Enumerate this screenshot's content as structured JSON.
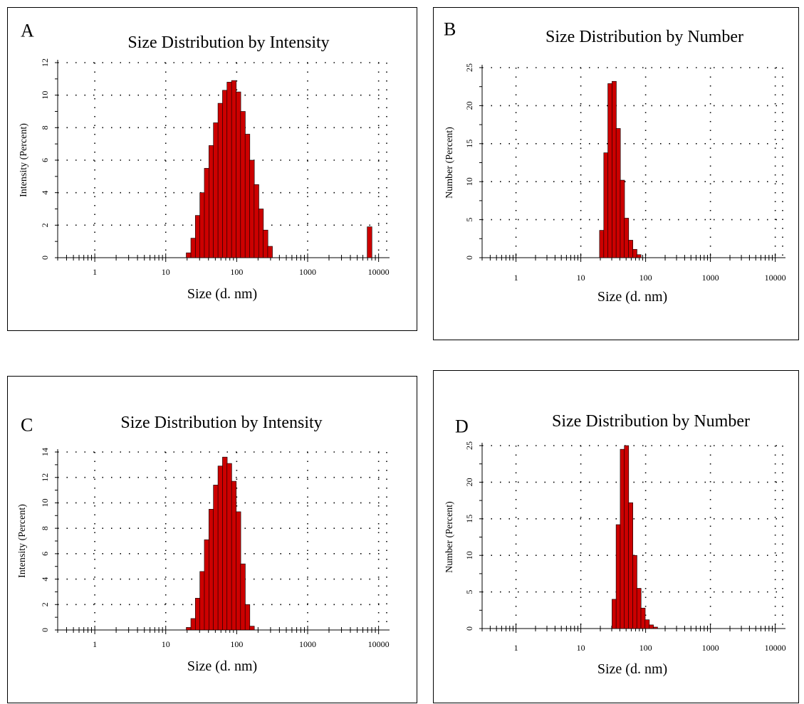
{
  "chart_data": [
    {
      "panel": "A",
      "type": "bar",
      "title": "Size Distribution by Intensity",
      "xlabel": "Size (d. nm)",
      "ylabel": "Intensity (Percent)",
      "xscale": "log",
      "xlim": [
        0.3,
        13000
      ],
      "ylim": [
        0,
        12
      ],
      "xticks": [
        1,
        10,
        100,
        1000,
        10000
      ],
      "xtick_labels": [
        "1",
        "10",
        "100",
        "1000",
        "10000"
      ],
      "yticks": [
        0,
        2,
        4,
        6,
        8,
        10,
        12
      ],
      "ytick_labels": [
        "0",
        "2",
        "4",
        "6",
        "8",
        "10",
        "12"
      ],
      "grid": true,
      "bar_color": "#cc0000",
      "x": [
        21.0,
        24.4,
        28.2,
        32.7,
        37.8,
        43.8,
        50.7,
        58.8,
        68.1,
        78.8,
        91.3,
        105.7,
        122.4,
        141.8,
        164.2,
        190.1,
        220.2,
        255.0,
        295.3,
        7456.0
      ],
      "values": [
        0.3,
        1.2,
        2.6,
        4.0,
        5.5,
        6.9,
        8.3,
        9.5,
        10.3,
        10.8,
        10.9,
        10.2,
        9.0,
        7.6,
        6.0,
        4.5,
        3.0,
        1.7,
        0.7,
        1.9
      ]
    },
    {
      "panel": "B",
      "type": "bar",
      "title": "Size Distribution by Number",
      "xlabel": "Size (d. nm)",
      "ylabel": "Number (Percent)",
      "xscale": "log",
      "xlim": [
        0.3,
        13000
      ],
      "ylim": [
        0,
        25
      ],
      "xticks": [
        1,
        10,
        100,
        1000,
        10000
      ],
      "xtick_labels": [
        "1",
        "10",
        "100",
        "1000",
        "10000"
      ],
      "yticks": [
        0,
        5,
        10,
        15,
        20,
        25
      ],
      "ytick_labels": [
        "0",
        "5",
        "10",
        "15",
        "20",
        "25"
      ],
      "grid": true,
      "bar_color": "#cc0000",
      "x": [
        21.0,
        24.4,
        28.2,
        32.7,
        37.8,
        43.8,
        50.7,
        58.8,
        68.1,
        78.8
      ],
      "values": [
        3.6,
        13.8,
        22.9,
        23.2,
        17.0,
        10.2,
        5.2,
        2.3,
        1.1,
        0.4
      ]
    },
    {
      "panel": "C",
      "type": "bar",
      "title": "Size Distribution by Intensity",
      "xlabel": "Size (d. nm)",
      "ylabel": "Intensity (Percent)",
      "xscale": "log",
      "xlim": [
        0.3,
        13000
      ],
      "ylim": [
        0,
        14
      ],
      "xticks": [
        1,
        10,
        100,
        1000,
        10000
      ],
      "xtick_labels": [
        "1",
        "10",
        "100",
        "1000",
        "10000"
      ],
      "yticks": [
        0,
        2,
        4,
        6,
        8,
        10,
        12,
        14
      ],
      "ytick_labels": [
        "0",
        "2",
        "4",
        "6",
        "8",
        "10",
        "12",
        "14"
      ],
      "grid": true,
      "bar_color": "#cc0000",
      "x": [
        21.0,
        24.4,
        28.2,
        32.7,
        37.8,
        43.8,
        50.7,
        58.8,
        68.1,
        78.8,
        91.3,
        105.7,
        122.4,
        141.8,
        164.2
      ],
      "values": [
        0.2,
        0.9,
        2.5,
        4.6,
        7.1,
        9.5,
        11.4,
        12.9,
        13.6,
        13.1,
        11.7,
        9.3,
        5.2,
        2.0,
        0.3
      ]
    },
    {
      "panel": "D",
      "type": "bar",
      "title": "Size Distribution by Number",
      "xlabel": "Size (d. nm)",
      "ylabel": "Number (Percent)",
      "xscale": "log",
      "xlim": [
        0.3,
        13000
      ],
      "ylim": [
        0,
        25
      ],
      "xticks": [
        1,
        10,
        100,
        1000,
        10000
      ],
      "xtick_labels": [
        "1",
        "10",
        "100",
        "1000",
        "10000"
      ],
      "yticks": [
        0,
        5,
        10,
        15,
        20,
        25
      ],
      "ytick_labels": [
        "0",
        "5",
        "10",
        "15",
        "20",
        "25"
      ],
      "grid": true,
      "bar_color": "#cc0000",
      "x": [
        32.7,
        37.8,
        43.8,
        50.7,
        58.8,
        68.1,
        78.8,
        91.3,
        105.7,
        122.4,
        141.8
      ],
      "values": [
        4.0,
        14.2,
        24.5,
        25.0,
        17.2,
        10.0,
        5.5,
        2.8,
        1.2,
        0.5,
        0.2
      ]
    }
  ]
}
